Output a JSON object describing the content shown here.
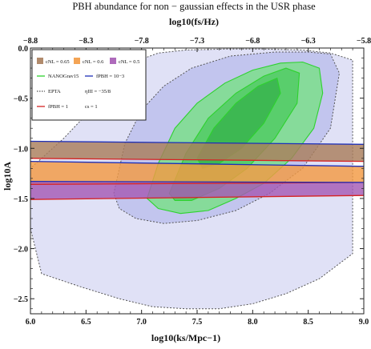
{
  "chart_data": {
    "type": "area",
    "title": "PBH abundance for non − gaussian effects in the USR phase",
    "top_axis_label": "log10(fs/Hz)",
    "xlabel": "log10(ks/Mpc−1)",
    "ylabel": "log10A",
    "xlim": [
      6.0,
      9.0
    ],
    "ylim": [
      -2.65,
      0.0
    ],
    "top_xlim": [
      -8.8,
      -5.8
    ],
    "x_ticks": [
      "6.0",
      "6.5",
      "7.0",
      "7.5",
      "8.0",
      "8.5",
      "9.0"
    ],
    "y_ticks": [
      "0.0",
      "−0.5",
      "−1.0",
      "−1.5",
      "−2.0",
      "−2.5"
    ],
    "top_ticks": [
      "−8.8",
      "−8.3",
      "−7.8",
      "−7.3",
      "−6.8",
      "−6.3",
      "−5.8"
    ],
    "grid": false,
    "legend_placement": "top-left",
    "legend": {
      "bands": [
        {
          "label": "cNL = 0.65",
          "color": "#a97e5c"
        },
        {
          "label": "cNL = 0.6",
          "color": "#f39a43"
        },
        {
          "label": "cNL = 0.5",
          "color": "#a55ab4"
        }
      ],
      "lines": [
        {
          "label": "NANOGrav15",
          "color": "#2ed22e",
          "style": "solid"
        },
        {
          "label": "fPBH = 10−3",
          "color": "#1e2fb8",
          "style": "solid"
        },
        {
          "label": "EPTA",
          "color": "#555555",
          "style": "dotted"
        },
        {
          "label": "ηIII = −35/8",
          "color": "",
          "style": "none"
        },
        {
          "label": "fPBH = 1",
          "color": "#d62222",
          "style": "solid"
        },
        {
          "label": "cs = 1",
          "color": "",
          "style": "none"
        }
      ]
    },
    "bands": [
      {
        "name": "cNL = 0.65",
        "color": "#a97e5c",
        "x": [
          6.0,
          9.0
        ],
        "upper": [
          -0.93,
          -0.96
        ],
        "lower": [
          -1.1,
          -1.13
        ]
      },
      {
        "name": "cNL = 0.6",
        "color": "#f39a43",
        "x": [
          6.0,
          9.0
        ],
        "upper": [
          -1.13,
          -1.18
        ],
        "lower": [
          -1.36,
          -1.34
        ]
      },
      {
        "name": "cNL = 0.5",
        "color": "#a55ab4",
        "x": [
          6.0,
          9.0
        ],
        "upper": [
          -1.33,
          -1.34
        ],
        "lower": [
          -1.51,
          -1.47
        ]
      }
    ],
    "regions": [
      {
        "name": "EPTA",
        "color": "#dadcf5",
        "edge": "#555555",
        "x": [
          6.1,
          6.0,
          6.0,
          6.3,
          6.6,
          6.8,
          6.95,
          7.15,
          7.4,
          7.75,
          8.1,
          8.45,
          8.7,
          8.9,
          8.9,
          8.6,
          8.3,
          8.0,
          7.7,
          7.4,
          7.1,
          6.8,
          6.45
        ],
        "y": [
          -2.25,
          -1.8,
          -1.2,
          -0.9,
          -0.55,
          -0.3,
          -0.13,
          -0.05,
          -0.02,
          -0.01,
          -0.01,
          -0.02,
          -0.05,
          -0.12,
          -2.05,
          -2.3,
          -2.45,
          -2.55,
          -2.6,
          -2.6,
          -2.58,
          -2.5,
          -2.38
        ]
      },
      {
        "name": "EPTA inner",
        "color": "#bcc0ec",
        "edge": "#555555",
        "x": [
          6.75,
          6.85,
          7.0,
          7.2,
          7.45,
          7.8,
          8.2,
          8.5,
          8.7,
          8.78,
          8.7,
          8.45,
          8.15,
          7.85,
          7.5,
          7.2,
          6.95,
          6.8
        ],
        "y": [
          -1.45,
          -0.95,
          -0.62,
          -0.38,
          -0.2,
          -0.08,
          -0.04,
          -0.04,
          -0.06,
          -0.25,
          -0.8,
          -1.2,
          -1.45,
          -1.62,
          -1.72,
          -1.75,
          -1.7,
          -1.6
        ]
      },
      {
        "name": "NANOGrav15 outer",
        "color": "#6fe37a",
        "edge": "#2ed22e",
        "x": [
          7.05,
          7.15,
          7.3,
          7.5,
          7.75,
          8.0,
          8.25,
          8.45,
          8.6,
          8.63,
          8.55,
          8.35,
          8.1,
          7.85,
          7.6,
          7.35,
          7.15
        ],
        "y": [
          -1.5,
          -1.15,
          -0.8,
          -0.55,
          -0.35,
          -0.22,
          -0.15,
          -0.14,
          -0.2,
          -0.45,
          -0.8,
          -1.1,
          -1.35,
          -1.5,
          -1.62,
          -1.65,
          -1.6
        ]
      },
      {
        "name": "NANOGrav15 mid",
        "color": "#48c95a",
        "edge": "#2ed22e",
        "x": [
          7.25,
          7.4,
          7.6,
          7.85,
          8.1,
          8.3,
          8.42,
          8.4,
          8.2,
          7.95,
          7.7,
          7.45,
          7.3
        ],
        "y": [
          -1.45,
          -1.05,
          -0.7,
          -0.45,
          -0.28,
          -0.2,
          -0.25,
          -0.55,
          -0.9,
          -1.2,
          -1.4,
          -1.52,
          -1.52
        ]
      },
      {
        "name": "NANOGrav15 inner",
        "color": "#32b048",
        "edge": "#2ed22e",
        "x": [
          7.5,
          7.65,
          7.85,
          8.05,
          8.22,
          8.25,
          8.1,
          7.9,
          7.7,
          7.55
        ],
        "y": [
          -1.1,
          -0.8,
          -0.55,
          -0.38,
          -0.3,
          -0.45,
          -0.75,
          -1.0,
          -1.15,
          -1.2
        ]
      }
    ],
    "curves": [
      {
        "name": "fPBH = 10−3 (0.65)",
        "color": "#1e2fb8",
        "x": [
          6.0,
          9.0
        ],
        "y": [
          -0.93,
          -0.96
        ]
      },
      {
        "name": "fPBH = 1 (0.65)",
        "color": "#d62222",
        "x": [
          6.0,
          9.0
        ],
        "y": [
          -1.1,
          -1.13
        ]
      },
      {
        "name": "fPBH = 10−3 (0.6)",
        "color": "#1e2fb8",
        "x": [
          6.0,
          9.0
        ],
        "y": [
          -1.13,
          -1.18
        ]
      },
      {
        "name": "fPBH = 1 (0.6)",
        "color": "#d62222",
        "x": [
          6.0,
          9.0
        ],
        "y": [
          -1.36,
          -1.34
        ]
      },
      {
        "name": "fPBH = 10−3 (0.5)",
        "color": "#1e2fb8",
        "x": [
          6.0,
          9.0
        ],
        "y": [
          -1.33,
          -1.34
        ]
      },
      {
        "name": "fPBH = 1 (0.5)",
        "color": "#d62222",
        "x": [
          6.0,
          9.0
        ],
        "y": [
          -1.51,
          -1.47
        ]
      }
    ]
  }
}
